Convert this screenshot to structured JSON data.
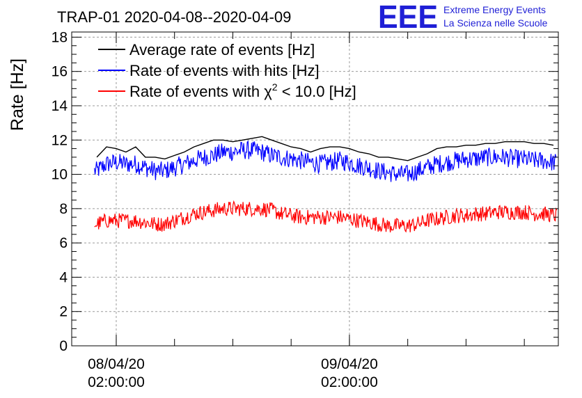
{
  "title": "TRAP-01 2020-04-08--2020-04-09",
  "logo": {
    "mark": "EEE",
    "line1": "Extreme Energy Events",
    "line2": "La Scienza nelle Scuole",
    "color": "#1f1fd6"
  },
  "chart_data": {
    "type": "line",
    "title": "TRAP-01 2020-04-08--2020-04-09",
    "xlabel": "",
    "ylabel": "Rate [Hz]",
    "ylim": [
      0,
      18.3
    ],
    "yticks": [
      0,
      2,
      4,
      6,
      8,
      10,
      12,
      14,
      16,
      18
    ],
    "xlim": [
      "2020-04-07 21:25",
      "2020-04-09 23:30"
    ],
    "xticks": [
      {
        "date": "08/04/20",
        "time": "02:00:00",
        "x": "2020-04-08 02:00"
      },
      {
        "date": "09/04/20",
        "time": "02:00:00",
        "x": "2020-04-09 02:00"
      }
    ],
    "grid": true,
    "legend_position": "top-left",
    "series": [
      {
        "name": "Average rate of events [Hz]",
        "color": "#000000",
        "style": "smooth",
        "x": [
          "2020-04-08 00:00",
          "2020-04-08 01:00",
          "2020-04-08 02:00",
          "2020-04-08 03:00",
          "2020-04-08 04:00",
          "2020-04-08 05:00",
          "2020-04-08 06:00",
          "2020-04-08 07:00",
          "2020-04-08 08:00",
          "2020-04-08 09:00",
          "2020-04-08 10:00",
          "2020-04-08 11:00",
          "2020-04-08 12:00",
          "2020-04-08 13:00",
          "2020-04-08 14:00",
          "2020-04-08 15:00",
          "2020-04-08 16:00",
          "2020-04-08 17:00",
          "2020-04-08 18:00",
          "2020-04-08 19:00",
          "2020-04-08 20:00",
          "2020-04-08 21:00",
          "2020-04-08 22:00",
          "2020-04-08 23:00",
          "2020-04-09 00:00",
          "2020-04-09 01:00",
          "2020-04-09 02:00",
          "2020-04-09 03:00",
          "2020-04-09 04:00",
          "2020-04-09 05:00",
          "2020-04-09 06:00",
          "2020-04-09 07:00",
          "2020-04-09 08:00",
          "2020-04-09 09:00",
          "2020-04-09 10:00",
          "2020-04-09 11:00",
          "2020-04-09 12:00",
          "2020-04-09 13:00",
          "2020-04-09 14:00",
          "2020-04-09 15:00",
          "2020-04-09 16:00",
          "2020-04-09 17:00",
          "2020-04-09 18:00",
          "2020-04-09 19:00",
          "2020-04-09 20:00",
          "2020-04-09 21:00",
          "2020-04-09 22:00",
          "2020-04-09 23:00"
        ],
        "y": [
          11.0,
          11.6,
          11.5,
          11.3,
          11.6,
          11.0,
          11.0,
          10.9,
          11.1,
          11.3,
          11.6,
          11.8,
          12.0,
          12.0,
          11.9,
          12.0,
          12.1,
          12.2,
          12.0,
          11.8,
          11.6,
          11.5,
          11.3,
          11.5,
          11.6,
          11.6,
          11.5,
          11.3,
          11.2,
          11.0,
          11.0,
          10.9,
          10.8,
          11.0,
          11.2,
          11.5,
          11.6,
          11.6,
          11.7,
          11.7,
          11.8,
          11.8,
          11.9,
          11.9,
          11.9,
          11.8,
          11.8,
          11.7
        ]
      },
      {
        "name": "Rate of events with hits [Hz]",
        "color": "#0000ff",
        "style": "noisy",
        "noise_amplitude": 0.55,
        "x": [
          "2020-04-08 00:00",
          "2020-04-08 01:00",
          "2020-04-08 02:00",
          "2020-04-08 03:00",
          "2020-04-08 04:00",
          "2020-04-08 05:00",
          "2020-04-08 06:00",
          "2020-04-08 07:00",
          "2020-04-08 08:00",
          "2020-04-08 09:00",
          "2020-04-08 10:00",
          "2020-04-08 11:00",
          "2020-04-08 12:00",
          "2020-04-08 13:00",
          "2020-04-08 14:00",
          "2020-04-08 15:00",
          "2020-04-08 16:00",
          "2020-04-08 17:00",
          "2020-04-08 18:00",
          "2020-04-08 19:00",
          "2020-04-08 20:00",
          "2020-04-08 21:00",
          "2020-04-08 22:00",
          "2020-04-08 23:00",
          "2020-04-09 00:00",
          "2020-04-09 01:00",
          "2020-04-09 02:00",
          "2020-04-09 03:00",
          "2020-04-09 04:00",
          "2020-04-09 05:00",
          "2020-04-09 06:00",
          "2020-04-09 07:00",
          "2020-04-09 08:00",
          "2020-04-09 09:00",
          "2020-04-09 10:00",
          "2020-04-09 11:00",
          "2020-04-09 12:00",
          "2020-04-09 13:00",
          "2020-04-09 14:00",
          "2020-04-09 15:00",
          "2020-04-09 16:00",
          "2020-04-09 17:00",
          "2020-04-09 18:00",
          "2020-04-09 19:00",
          "2020-04-09 20:00",
          "2020-04-09 21:00",
          "2020-04-09 22:00",
          "2020-04-09 23:00"
        ],
        "y": [
          10.2,
          10.6,
          10.7,
          10.6,
          10.6,
          10.4,
          10.2,
          10.2,
          10.4,
          10.6,
          10.8,
          11.0,
          11.1,
          11.3,
          11.3,
          11.4,
          11.4,
          11.3,
          11.1,
          11.0,
          10.9,
          10.8,
          10.7,
          10.6,
          10.7,
          10.8,
          10.7,
          10.5,
          10.4,
          10.2,
          10.1,
          10.0,
          10.0,
          10.2,
          10.4,
          10.6,
          10.7,
          10.8,
          10.9,
          10.9,
          11.0,
          11.0,
          11.0,
          10.9,
          10.9,
          10.8,
          10.8,
          10.7
        ]
      },
      {
        "name": "Rate of events with χ2 < 10.0 [Hz]",
        "label_parts": {
          "pre": "Rate of events with ",
          "sym": "χ",
          "sup": "2",
          "post": " < 10.0 [Hz]"
        },
        "color": "#ff0000",
        "style": "noisy",
        "noise_amplitude": 0.45,
        "x": [
          "2020-04-08 00:00",
          "2020-04-08 01:00",
          "2020-04-08 02:00",
          "2020-04-08 03:00",
          "2020-04-08 04:00",
          "2020-04-08 05:00",
          "2020-04-08 06:00",
          "2020-04-08 07:00",
          "2020-04-08 08:00",
          "2020-04-08 09:00",
          "2020-04-08 10:00",
          "2020-04-08 11:00",
          "2020-04-08 12:00",
          "2020-04-08 13:00",
          "2020-04-08 14:00",
          "2020-04-08 15:00",
          "2020-04-08 16:00",
          "2020-04-08 17:00",
          "2020-04-08 18:00",
          "2020-04-08 19:00",
          "2020-04-08 20:00",
          "2020-04-08 21:00",
          "2020-04-08 22:00",
          "2020-04-08 23:00",
          "2020-04-09 00:00",
          "2020-04-09 01:00",
          "2020-04-09 02:00",
          "2020-04-09 03:00",
          "2020-04-09 04:00",
          "2020-04-09 05:00",
          "2020-04-09 06:00",
          "2020-04-09 07:00",
          "2020-04-09 08:00",
          "2020-04-09 09:00",
          "2020-04-09 10:00",
          "2020-04-09 11:00",
          "2020-04-09 12:00",
          "2020-04-09 13:00",
          "2020-04-09 14:00",
          "2020-04-09 15:00",
          "2020-04-09 16:00",
          "2020-04-09 17:00",
          "2020-04-09 18:00",
          "2020-04-09 19:00",
          "2020-04-09 20:00",
          "2020-04-09 21:00",
          "2020-04-09 22:00",
          "2020-04-09 23:00"
        ],
        "y": [
          7.1,
          7.3,
          7.3,
          7.3,
          7.3,
          7.2,
          7.1,
          7.1,
          7.3,
          7.5,
          7.7,
          7.8,
          7.9,
          8.0,
          8.0,
          8.0,
          8.0,
          8.0,
          7.9,
          7.7,
          7.6,
          7.5,
          7.5,
          7.5,
          7.5,
          7.5,
          7.4,
          7.3,
          7.2,
          7.1,
          7.0,
          7.0,
          7.0,
          7.1,
          7.3,
          7.4,
          7.5,
          7.6,
          7.6,
          7.7,
          7.7,
          7.8,
          7.8,
          7.8,
          7.8,
          7.7,
          7.7,
          7.6
        ]
      }
    ]
  }
}
